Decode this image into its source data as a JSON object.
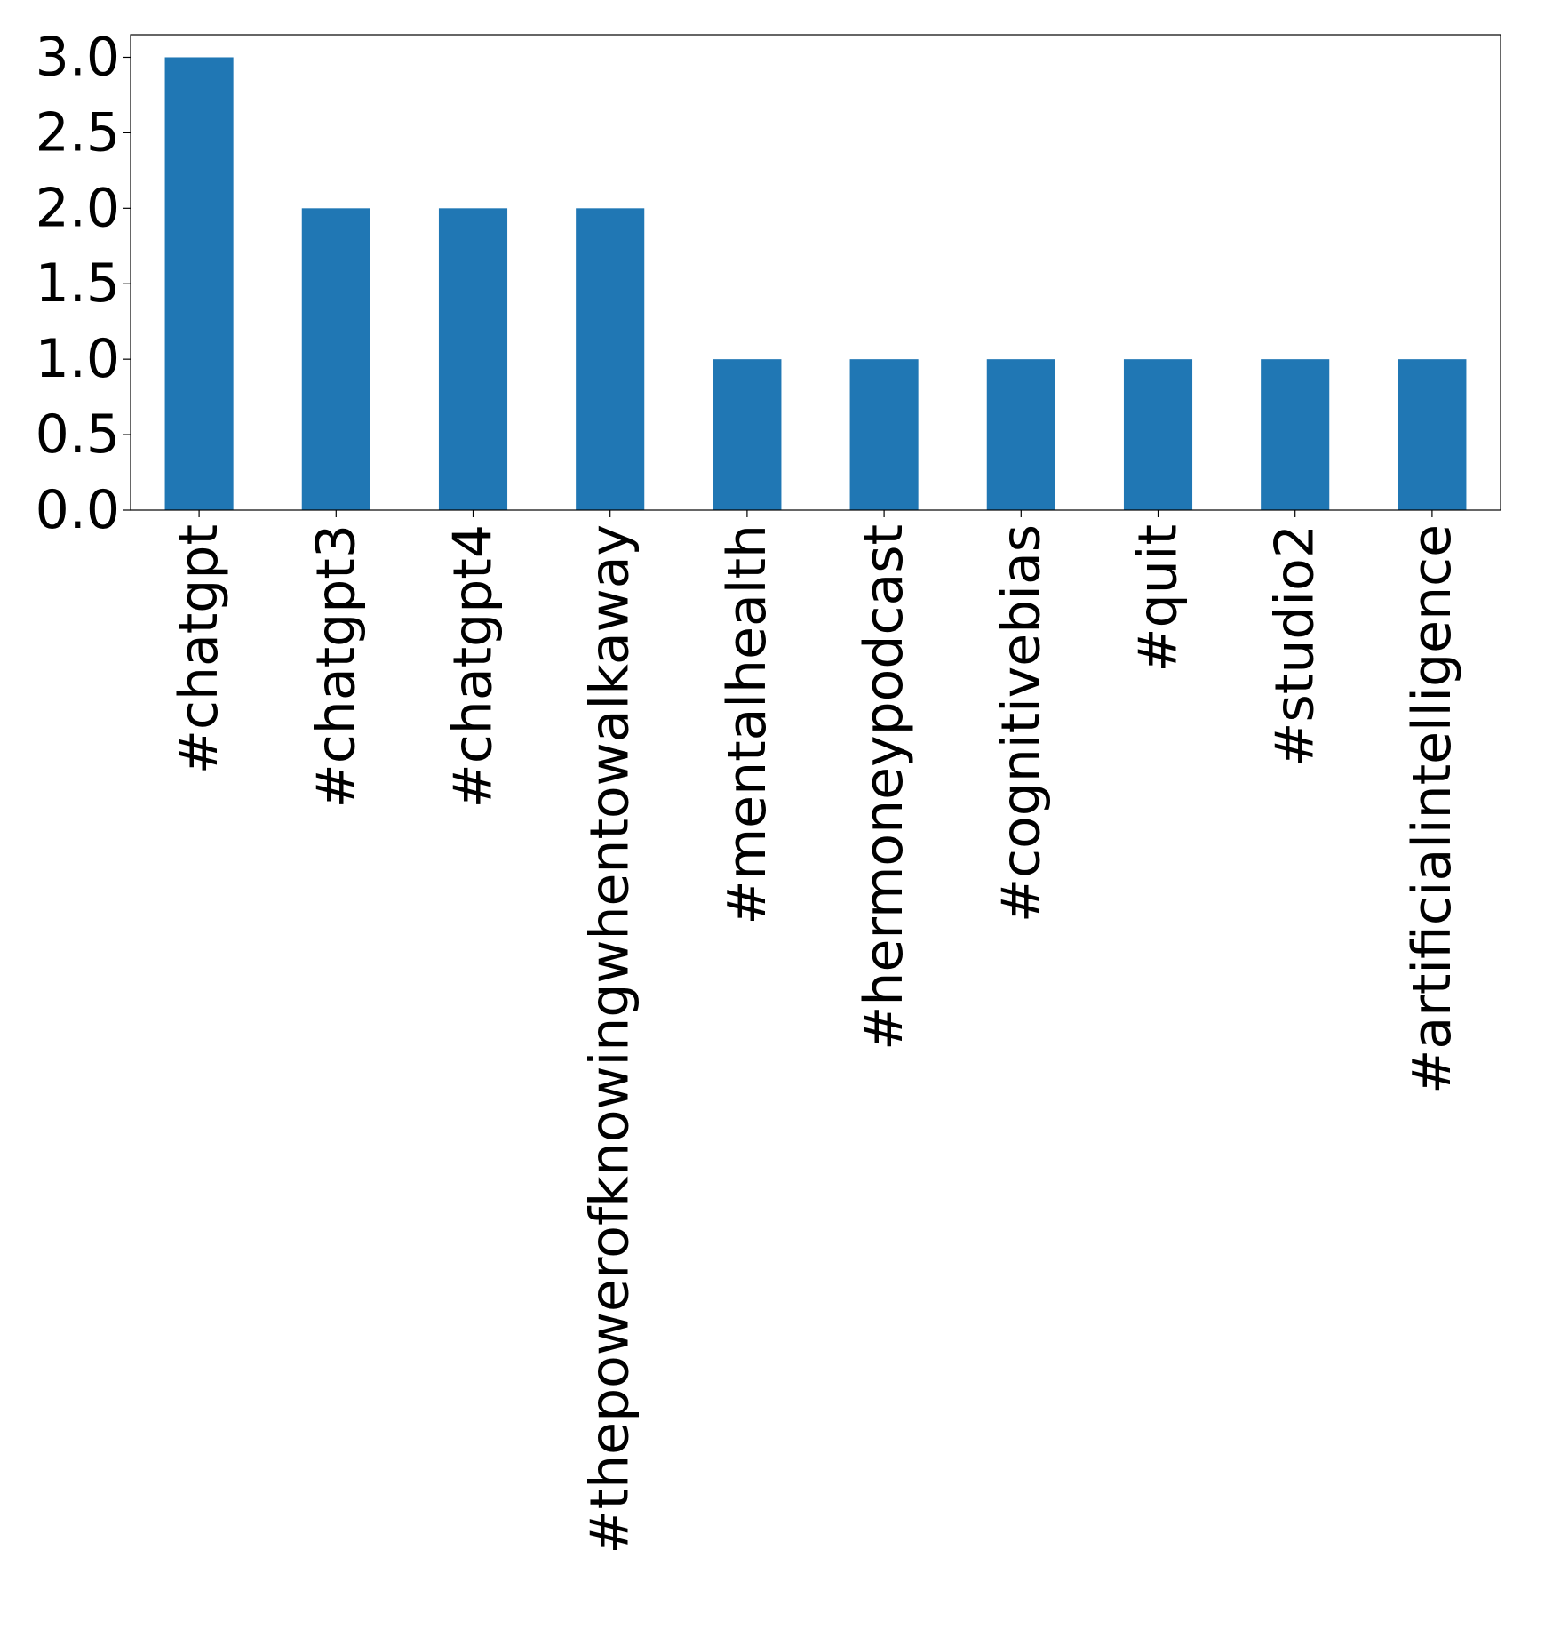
{
  "chart_data": {
    "type": "bar",
    "title": "",
    "xlabel": "",
    "ylabel": "",
    "categories": [
      "#chatgpt",
      "#chatgpt3",
      "#chatgpt4",
      "#thepowerofknowingwhentowalkaway",
      "#mentalhealth",
      "#hermoneypodcast",
      "#cognitivebias",
      "#quit",
      "#studio2",
      "#artificialintelligence"
    ],
    "values": [
      3,
      2,
      2,
      2,
      1,
      1,
      1,
      1,
      1,
      1
    ],
    "ylim": [
      0,
      3.15
    ],
    "yticks": [
      {
        "value": 0.0,
        "label": "0.0"
      },
      {
        "value": 0.5,
        "label": "0.5"
      },
      {
        "value": 1.0,
        "label": "1.0"
      },
      {
        "value": 1.5,
        "label": "1.5"
      },
      {
        "value": 2.0,
        "label": "2.0"
      },
      {
        "value": 2.5,
        "label": "2.5"
      },
      {
        "value": 3.0,
        "label": "3.0"
      }
    ],
    "grid": false,
    "legend": "none",
    "colors": {
      "bar": "#2077b4",
      "axes": "#000000"
    }
  }
}
